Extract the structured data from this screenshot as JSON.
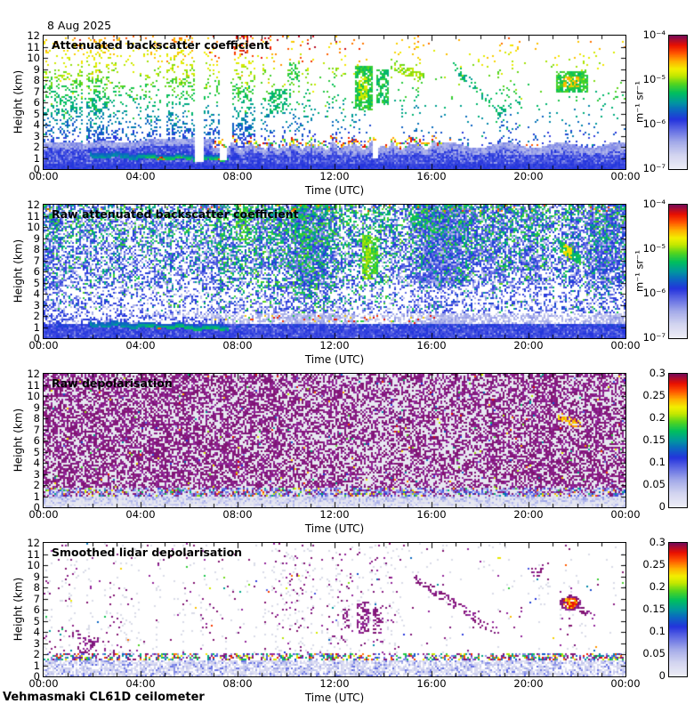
{
  "header": {
    "date": "8 Aug 2025"
  },
  "footer": {
    "station": "Vehmasmaki CL61D ceilometer"
  },
  "colors": {
    "background": "#ffffff",
    "axis": "#000000",
    "noise_maroon": [
      "#8a1d84",
      "#7d1679",
      "#93269b",
      "#821370"
    ],
    "light_gray_dot": "#d9dbe8",
    "depol_bg": "#e6e7f0",
    "lavender_bg": "#eef0f8"
  },
  "colormap": [
    [
      0.0,
      "#edeef6"
    ],
    [
      0.1,
      "#d3d5f0"
    ],
    [
      0.2,
      "#a3aae9"
    ],
    [
      0.3,
      "#5b66e3"
    ],
    [
      0.37,
      "#2433dd"
    ],
    [
      0.44,
      "#0c66c2"
    ],
    [
      0.5,
      "#00989e"
    ],
    [
      0.57,
      "#00bf5e"
    ],
    [
      0.64,
      "#55d51e"
    ],
    [
      0.7,
      "#c3e800"
    ],
    [
      0.75,
      "#f2ef00"
    ],
    [
      0.81,
      "#ffb000"
    ],
    [
      0.87,
      "#ff5500"
    ],
    [
      0.93,
      "#e90f00"
    ],
    [
      1.0,
      "#7a0a55"
    ]
  ],
  "chart_data": [
    {
      "type": "heatmap",
      "style": "backscatter",
      "seed": 11,
      "title": "Attenuated backscatter coefficient",
      "xlabel": "Time (UTC)",
      "ylabel": "Height (km)",
      "x_ticks": [
        "00:00",
        "04:00",
        "08:00",
        "12:00",
        "16:00",
        "20:00",
        "00:00"
      ],
      "x_minor_step_hours": 1,
      "y_ticks": [
        0,
        1,
        2,
        3,
        4,
        5,
        6,
        7,
        8,
        9,
        10,
        11,
        12
      ],
      "xlim_hours": [
        0,
        24
      ],
      "ylim_km": [
        0,
        12
      ],
      "colorbar": {
        "labels": [
          "10⁻⁴",
          "10⁻⁵",
          "10⁻⁶",
          "10⁻⁷"
        ],
        "unit": "m⁻¹ sr⁻¹",
        "scale": "log",
        "range": [
          "1e-7",
          "1e-4"
        ]
      },
      "description": "Solid blue boundary layer 0-2.5 km all day; thin aerosol layer ~1 km 02:00-07:30; cumulus cloud-base red specks 07:00-16:00; noise speckle colored by height (blue→green→yellow→red) above",
      "features": [
        {
          "t0": 9.35,
          "t1": 9.95,
          "h0": 5.0,
          "h1": 7.2,
          "density": 0.45,
          "value": 0.56,
          "note": "green plume"
        },
        {
          "t0": 10.05,
          "t1": 10.5,
          "h0": 7.4,
          "h1": 9.6,
          "density": 0.35,
          "value": 0.6,
          "note": "plume"
        },
        {
          "t0": 12.85,
          "t1": 13.5,
          "h0": 5.4,
          "h1": 9.2,
          "density": 0.8,
          "value": 0.6,
          "core_value": 0.72,
          "note": "bright yellow-green plume"
        },
        {
          "t0": 13.7,
          "t1": 14.2,
          "h0": 5.9,
          "h1": 8.8,
          "density": 0.7,
          "value": 0.58,
          "note": "plume"
        },
        {
          "t0": 14.3,
          "t1": 15.6,
          "h0": 9.5,
          "h1": 8.2,
          "density": 0.55,
          "value": 0.68,
          "slope": true,
          "th": 0.4,
          "note": "yellow streak"
        },
        {
          "t0": 16.9,
          "t1": 18.9,
          "h0": 9.3,
          "h1": 5.0,
          "density": 0.3,
          "value": 0.55,
          "slope": true,
          "th": 0.45,
          "note": "diagonal virga"
        },
        {
          "t0": 21.15,
          "t1": 22.4,
          "h0": 6.9,
          "h1": 8.7,
          "density": 0.85,
          "value": 0.6,
          "core_value": 0.79,
          "note": "mid-level cloud, orange core"
        }
      ]
    },
    {
      "type": "heatmap",
      "style": "raw_backscatter",
      "seed": 22,
      "title": "Raw attenuated backscatter coefficient",
      "xlabel": "Time (UTC)",
      "ylabel": "Height (km)",
      "x_ticks": [
        "00:00",
        "04:00",
        "08:00",
        "12:00",
        "16:00",
        "20:00",
        "00:00"
      ],
      "x_minor_step_hours": 1,
      "y_ticks": [
        0,
        1,
        2,
        3,
        4,
        5,
        6,
        7,
        8,
        9,
        10,
        11,
        12
      ],
      "xlim_hours": [
        0,
        24
      ],
      "ylim_km": [
        0,
        12
      ],
      "colorbar": {
        "labels": [
          "10⁻⁴",
          "10⁻⁵",
          "10⁻⁶",
          "10⁻⁷"
        ],
        "unit": "m⁻¹ sr⁻¹",
        "scale": "log",
        "range": [
          "1e-7",
          "1e-4"
        ]
      },
      "description": "Dense blue/cyan noise over whole field, greener aloft and 07:00-14:00; solid blue layer below ~1.3 km; dark band 1.5-2.5 km before 07:30; aerosol arc 02:00-07:30; cloud-base specks 07:00-16:00",
      "features": [
        {
          "t0": 7.9,
          "t1": 8.45,
          "h0": 8.8,
          "h1": 11.8,
          "density": 0.5,
          "value": 0.62,
          "note": "green streak"
        },
        {
          "t0": 13.15,
          "t1": 13.4,
          "h0": 5.3,
          "h1": 9.2,
          "density": 0.8,
          "value": 0.66,
          "note": "bright green-yellow streak"
        },
        {
          "t0": 13.5,
          "t1": 13.7,
          "h0": 5.8,
          "h1": 9.0,
          "density": 0.7,
          "value": 0.62,
          "note": "streak"
        },
        {
          "t0": 14.9,
          "t1": 16.2,
          "h0": 11.2,
          "h1": 9.8,
          "density": 0.35,
          "value": 0.58,
          "slope": true,
          "th": 0.4,
          "note": "green diagonal"
        },
        {
          "t0": 21.3,
          "t1": 22.1,
          "h0": 8.3,
          "h1": 7.1,
          "density": 0.9,
          "value": 0.58,
          "slope": true,
          "th": 0.45,
          "core_value": 0.77,
          "note": "cloud arc with orange core"
        }
      ]
    },
    {
      "type": "heatmap",
      "style": "raw_depol",
      "seed": 33,
      "title": "Raw depolarisation",
      "xlabel": "Time (UTC)",
      "ylabel": "Height (km)",
      "x_ticks": [
        "00:00",
        "04:00",
        "08:00",
        "12:00",
        "16:00",
        "20:00",
        "00:00"
      ],
      "x_minor_step_hours": 1,
      "y_ticks": [
        0,
        1,
        2,
        3,
        4,
        5,
        6,
        7,
        8,
        9,
        10,
        11,
        12
      ],
      "xlim_hours": [
        0,
        24
      ],
      "ylim_km": [
        0,
        12
      ],
      "colorbar": {
        "labels": [
          "0.3",
          "0.25",
          "0.2",
          "0.15",
          "0.1",
          "0.05",
          "0"
        ],
        "unit": null,
        "scale": "linear",
        "range": [
          0,
          0.3
        ]
      },
      "description": "Saturated maroon noise (depol > 0.3) above ~1.5 km on pale gray; multicolour specks at 1-2 km transition; low-depol lavender-blue layer below 1 km",
      "features": [
        {
          "t0": 21.2,
          "t1": 22.1,
          "h0": 8.2,
          "h1": 7.4,
          "density": 0.5,
          "value": 0.8,
          "slope": true,
          "th": 0.3,
          "note": "orange-red cluster"
        }
      ]
    },
    {
      "type": "heatmap",
      "style": "smooth_depol",
      "seed": 44,
      "title": "Smoothed lidar depolarisation",
      "xlabel": "Time (UTC)",
      "ylabel": "Height (km)",
      "x_ticks": [
        "00:00",
        "04:00",
        "08:00",
        "12:00",
        "16:00",
        "20:00",
        "00:00"
      ],
      "x_minor_step_hours": 1,
      "y_ticks": [
        0,
        1,
        2,
        3,
        4,
        5,
        6,
        7,
        8,
        9,
        10,
        11,
        12
      ],
      "xlim_hours": [
        0,
        24
      ],
      "ylim_km": [
        0,
        12
      ],
      "colorbar": {
        "labels": [
          "0.3",
          "0.25",
          "0.2",
          "0.15",
          "0.1",
          "0.05",
          "0"
        ],
        "unit": null,
        "scale": "linear",
        "range": [
          0,
          0.3
        ]
      },
      "description": "Mostly white; sparse maroon residual noise in vertical streaks; multicolour cloud-top band ~1.5-2 km; lavender low-depol layer below 1.5 km; high-depol red blob ~21:30 at 6-7 km",
      "features": [
        {
          "t0": 12.35,
          "t1": 12.55,
          "h0": 4.4,
          "h1": 6.0,
          "density": 0.3,
          "note": "maroon cluster"
        },
        {
          "t0": 12.95,
          "t1": 13.35,
          "h0": 3.9,
          "h1": 6.6,
          "density": 0.55,
          "note": "maroon cluster"
        },
        {
          "t0": 13.55,
          "t1": 13.9,
          "h0": 3.9,
          "h1": 6.2,
          "density": 0.45,
          "note": "maroon cluster"
        },
        {
          "t0": 15.2,
          "t1": 18.7,
          "h0": 9.0,
          "h1": 4.0,
          "density": 0.32,
          "slope": true,
          "th": 0.35,
          "note": "diagonal dotted streak"
        },
        {
          "t0": 20.1,
          "t1": 20.5,
          "h0": 9.0,
          "h1": 9.7,
          "density": 0.5,
          "note": "small cluster"
        },
        {
          "t0": 1.5,
          "t1": 2.2,
          "h0": 2.2,
          "h1": 3.4,
          "density": 0.35,
          "note": "cluster"
        },
        {
          "t0": 21.3,
          "t1": 22.15,
          "h0": 5.9,
          "h1": 7.3,
          "density": 0.95,
          "blob": true,
          "value": 0.86,
          "note": "red-orange blob, maroon rim"
        },
        {
          "t0": 22.1,
          "t1": 22.65,
          "h0": 6.1,
          "h1": 5.5,
          "density": 0.5,
          "slope": true,
          "th": 0.25,
          "note": "maroon tail"
        }
      ]
    }
  ]
}
